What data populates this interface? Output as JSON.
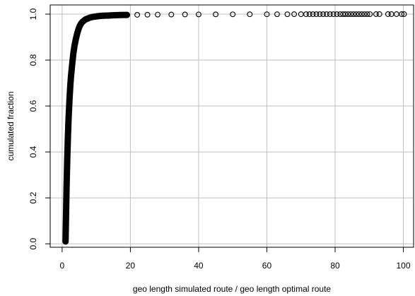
{
  "chart_data": {
    "type": "scatter",
    "xlabel": "geo length simulated route /  geo length optimal route",
    "ylabel": "cumulated fraction",
    "xlim": [
      -3.5,
      103
    ],
    "ylim": [
      -0.015,
      1.04
    ],
    "x_ticks": [
      0,
      20,
      40,
      60,
      80,
      100
    ],
    "y_ticks": [
      0.0,
      0.2,
      0.4,
      0.6,
      0.8,
      1.0
    ],
    "x_tick_labels": [
      "0",
      "20",
      "40",
      "60",
      "80",
      "100"
    ],
    "y_tick_labels": [
      "0.0",
      "0.2",
      "0.4",
      "0.6",
      "0.8",
      "1.0"
    ],
    "grid": true,
    "marker": "open-circle",
    "series": [
      {
        "color": "#000000",
        "x": [
          1.0,
          1.1,
          1.2,
          1.3,
          1.4,
          1.5,
          1.6,
          1.7,
          1.8,
          1.9,
          2.0,
          2.2,
          2.4,
          2.6,
          2.8,
          3.0,
          3.3,
          3.6,
          4.0,
          4.4,
          4.8,
          5.2,
          5.6,
          6.0,
          6.5,
          7.0,
          7.5,
          8.0,
          8.5,
          9.0,
          10.0,
          11.0,
          12.0,
          13.5,
          15.0,
          17.0,
          19.0,
          22.0,
          25.0,
          28.0,
          32.0,
          36.0,
          40.0,
          45.0,
          50.0,
          55.0,
          60.0,
          63.0,
          66.0,
          68.0,
          70.0,
          71.5,
          72.5,
          73.5,
          74.5,
          75.5,
          76.5,
          77.5,
          78.5,
          79.5,
          80.5,
          81.5,
          82.3,
          83.0,
          83.8,
          84.6,
          85.4,
          86.2,
          87.0,
          87.8,
          88.6,
          89.4,
          90.2,
          92.0,
          93.0,
          95.5,
          96.5,
          98.0,
          99.5,
          100.2
        ],
        "y": [
          0.01,
          0.09,
          0.17,
          0.25,
          0.31,
          0.37,
          0.42,
          0.47,
          0.51,
          0.55,
          0.58,
          0.64,
          0.69,
          0.73,
          0.76,
          0.79,
          0.83,
          0.86,
          0.89,
          0.915,
          0.935,
          0.95,
          0.96,
          0.967,
          0.973,
          0.978,
          0.981,
          0.984,
          0.986,
          0.988,
          0.99,
          0.992,
          0.993,
          0.994,
          0.995,
          0.996,
          0.9965,
          0.997,
          0.9975,
          0.998,
          0.9983,
          0.9986,
          0.9988,
          0.999,
          0.9992,
          0.9993,
          0.9994,
          0.9995,
          0.9995,
          0.9996,
          0.9996,
          0.9997,
          0.9997,
          0.9997,
          0.9997,
          0.9998,
          0.9998,
          0.9998,
          0.9998,
          0.9998,
          0.9998,
          0.9999,
          0.9999,
          0.9999,
          0.9999,
          0.9999,
          0.9999,
          0.9999,
          0.9999,
          0.9999,
          0.9999,
          0.9999,
          0.9999,
          1.0,
          1.0,
          1.0,
          1.0,
          1.0,
          1.0,
          1.0
        ]
      }
    ]
  }
}
